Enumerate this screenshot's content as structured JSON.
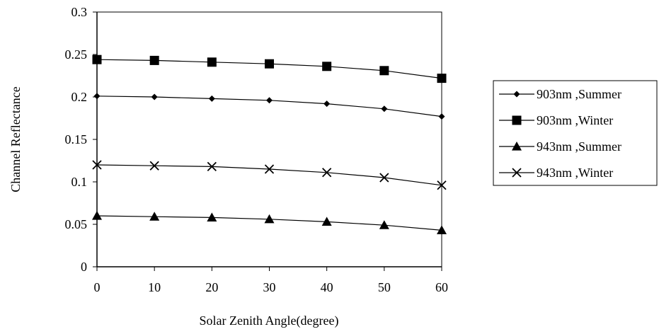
{
  "chart_data": {
    "type": "line",
    "xlabel": "Solar Zenith Angle(degree)",
    "ylabel": "Channel Reflectance",
    "x": [
      0,
      10,
      20,
      30,
      40,
      50,
      60
    ],
    "xlim": [
      0,
      60
    ],
    "ylim": [
      0,
      0.3
    ],
    "x_ticks": [
      "0",
      "10",
      "20",
      "30",
      "40",
      "50",
      "60"
    ],
    "y_ticks": [
      "0",
      "0.05",
      "0.1",
      "0.15",
      "0.2",
      "0.25",
      "0.3"
    ],
    "grid": false,
    "legend_position": "right",
    "series": [
      {
        "name": "903nm ,Summer",
        "marker": "diamond",
        "color": "#000000",
        "values": [
          0.201,
          0.2,
          0.198,
          0.196,
          0.192,
          0.186,
          0.177
        ]
      },
      {
        "name": "903nm ,Winter",
        "marker": "square",
        "color": "#000000",
        "values": [
          0.244,
          0.243,
          0.241,
          0.239,
          0.236,
          0.231,
          0.222
        ]
      },
      {
        "name": "943nm ,Summer",
        "marker": "triangle",
        "color": "#000000",
        "values": [
          0.06,
          0.059,
          0.058,
          0.056,
          0.053,
          0.049,
          0.043
        ]
      },
      {
        "name": "943nm ,Winter",
        "marker": "x",
        "color": "#000000",
        "values": [
          0.12,
          0.119,
          0.118,
          0.115,
          0.111,
          0.105,
          0.096
        ]
      }
    ]
  }
}
